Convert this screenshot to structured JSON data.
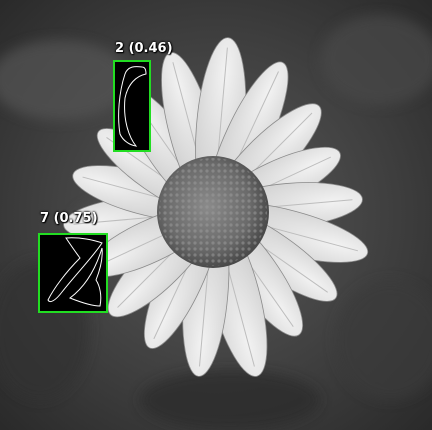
{
  "image": {
    "subject": "daisy-flower",
    "mode": "grayscale"
  },
  "colors": {
    "box_border": "#22dd22",
    "box_fill": "#000000",
    "contour": "#ffffff",
    "label_text": "#ffffff"
  },
  "detections": [
    {
      "id": "2",
      "label": "2 (0.46)",
      "score": 0.46
    },
    {
      "id": "7",
      "label": "7 (0.75)",
      "score": 0.75
    }
  ]
}
